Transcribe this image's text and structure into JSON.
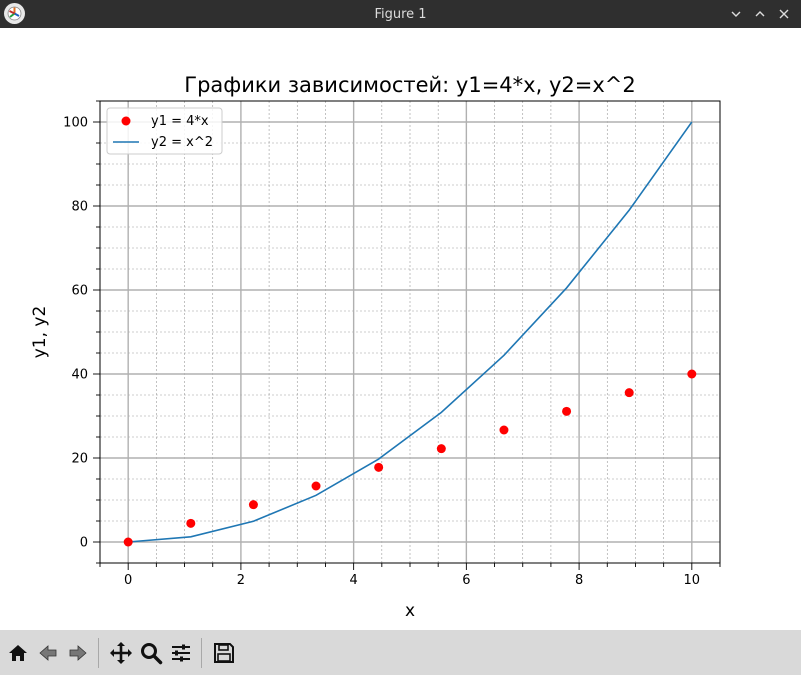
{
  "window": {
    "title": "Figure 1"
  },
  "toolbar": {
    "buttons": [
      {
        "icon": "home-icon"
      },
      {
        "icon": "back-arrow-icon"
      },
      {
        "icon": "forward-arrow-icon"
      },
      {
        "icon": "pan-move-icon"
      },
      {
        "icon": "zoom-magnifier-icon"
      },
      {
        "icon": "configure-subplots-icon"
      },
      {
        "icon": "save-floppy-icon"
      }
    ]
  },
  "chart_data": {
    "type": "line",
    "title": "Графики зависимостей: y1=4*x, y2=x^2",
    "xlabel": "x",
    "ylabel": "y1, y2",
    "xlim": [
      -0.5,
      10.5
    ],
    "ylim": [
      -5,
      105
    ],
    "xticks": [
      0,
      2,
      4,
      6,
      8,
      10
    ],
    "yticks": [
      0,
      20,
      40,
      60,
      80,
      100
    ],
    "grid": {
      "major": true,
      "minor": true
    },
    "legend_position": "top-left",
    "series": [
      {
        "name": "y1 = 4*x",
        "kind": "scatter",
        "color": "#ff0000",
        "x": [
          0,
          1.111,
          2.222,
          3.333,
          4.444,
          5.556,
          6.667,
          7.778,
          8.889,
          10
        ],
        "y": [
          0,
          4.444,
          8.889,
          13.333,
          17.778,
          22.222,
          26.667,
          31.111,
          35.556,
          40
        ]
      },
      {
        "name": "y2 = x^2",
        "kind": "line",
        "color": "#1f77b4",
        "x": [
          0,
          1.111,
          2.222,
          3.333,
          4.444,
          5.556,
          6.667,
          7.778,
          8.889,
          10
        ],
        "y": [
          0,
          1.235,
          4.938,
          11.111,
          19.753,
          30.864,
          44.444,
          60.494,
          79.012,
          100
        ]
      }
    ]
  }
}
